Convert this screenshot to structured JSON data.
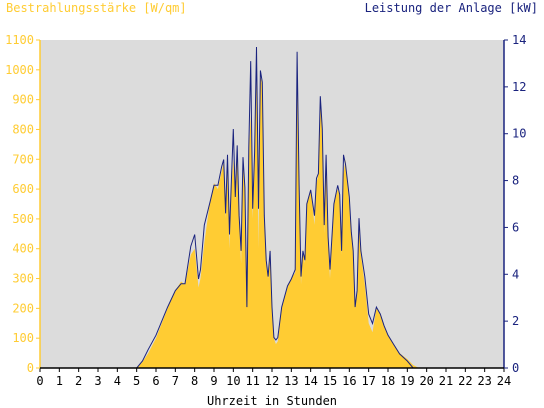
{
  "chart_data": {
    "type": "area",
    "left_axis_title": "Bestrahlungsstärke [W/qm]",
    "right_axis_title": "Leistung der Anlage [kW]",
    "xlabel": "Uhrzeit in Stunden",
    "xlim": [
      0,
      24
    ],
    "ylim_left": [
      0,
      1100
    ],
    "ylim_right": [
      0,
      14
    ],
    "x_ticks": [
      "0",
      "1",
      "2",
      "3",
      "4",
      "5",
      "6",
      "7",
      "8",
      "9",
      "10",
      "11",
      "12",
      "13",
      "14",
      "15",
      "16",
      "17",
      "18",
      "19",
      "20",
      "21",
      "22",
      "23",
      "24"
    ],
    "left_ticks": [
      "0",
      "100",
      "200",
      "300",
      "400",
      "500",
      "600",
      "700",
      "800",
      "900",
      "1000",
      "1100"
    ],
    "right_ticks": [
      "0",
      "2",
      "4",
      "6",
      "8",
      "10",
      "12",
      "14"
    ],
    "grid": false,
    "colors": {
      "plot_bg": "#dcdcdc",
      "irradiance": "#ffcc33",
      "irradiance_axis": "#ffcc33",
      "power": "#1a237e",
      "power_axis": "#1a237e",
      "text": "#000000"
    },
    "series": [
      {
        "axis": "left",
        "style": "area",
        "x": [
          0,
          5,
          5.3,
          5.6,
          6,
          6.3,
          6.6,
          7,
          7.3,
          7.5,
          7.8,
          8,
          8.2,
          8.3,
          8.5,
          8.8,
          9,
          9.2,
          9.4,
          9.5,
          9.6,
          9.7,
          9.8,
          9.9,
          10,
          10.1,
          10.2,
          10.3,
          10.4,
          10.5,
          10.6,
          10.7,
          10.8,
          10.9,
          11,
          11.1,
          11.2,
          11.3,
          11.4,
          11.5,
          11.6,
          11.7,
          11.8,
          11.9,
          12,
          12.1,
          12.2,
          12.3,
          12.5,
          12.8,
          13,
          13.2,
          13.3,
          13.4,
          13.5,
          13.6,
          13.7,
          13.8,
          14,
          14.2,
          14.3,
          14.4,
          14.5,
          14.6,
          14.7,
          14.8,
          14.9,
          15,
          15.2,
          15.4,
          15.5,
          15.6,
          15.7,
          15.8,
          16,
          16.1,
          16.2,
          16.3,
          16.4,
          16.5,
          16.6,
          16.8,
          17,
          17.2,
          17.4,
          17.6,
          17.8,
          18,
          18.3,
          18.6,
          19,
          19.3,
          19.6,
          19.8,
          20,
          24
        ],
        "values": [
          0,
          0,
          20,
          50,
          100,
          150,
          200,
          260,
          290,
          280,
          380,
          400,
          270,
          300,
          420,
          560,
          620,
          600,
          660,
          690,
          500,
          700,
          400,
          600,
          700,
          560,
          750,
          500,
          350,
          690,
          600,
          200,
          700,
          850,
          500,
          700,
          1000,
          400,
          980,
          950,
          500,
          350,
          300,
          400,
          200,
          100,
          80,
          90,
          200,
          270,
          300,
          320,
          1000,
          600,
          280,
          400,
          350,
          550,
          600,
          480,
          620,
          650,
          900,
          800,
          450,
          700,
          420,
          300,
          550,
          600,
          580,
          380,
          650,
          700,
          550,
          450,
          380,
          200,
          250,
          500,
          380,
          280,
          150,
          120,
          200,
          180,
          140,
          110,
          80,
          50,
          30,
          10,
          0,
          0,
          0,
          0
        ]
      },
      {
        "axis": "right",
        "style": "line",
        "x": [
          0,
          5,
          5.3,
          5.6,
          6,
          6.3,
          6.6,
          7,
          7.3,
          7.5,
          7.8,
          8,
          8.2,
          8.3,
          8.5,
          8.8,
          9,
          9.2,
          9.4,
          9.5,
          9.6,
          9.7,
          9.8,
          9.9,
          10,
          10.1,
          10.2,
          10.3,
          10.4,
          10.5,
          10.6,
          10.7,
          10.8,
          10.9,
          11,
          11.1,
          11.2,
          11.3,
          11.4,
          11.5,
          11.6,
          11.7,
          11.8,
          11.9,
          12,
          12.1,
          12.2,
          12.3,
          12.5,
          12.8,
          13,
          13.2,
          13.3,
          13.4,
          13.5,
          13.6,
          13.7,
          13.8,
          14,
          14.2,
          14.3,
          14.4,
          14.5,
          14.6,
          14.7,
          14.8,
          14.9,
          15,
          15.2,
          15.4,
          15.5,
          15.6,
          15.7,
          15.8,
          16,
          16.1,
          16.2,
          16.3,
          16.4,
          16.5,
          16.6,
          16.8,
          17,
          17.2,
          17.4,
          17.6,
          17.8,
          18,
          18.3,
          18.6,
          19,
          19.3,
          19.6,
          19.8,
          20,
          24
        ],
        "values": [
          0,
          0,
          0.3,
          0.8,
          1.4,
          2,
          2.6,
          3.3,
          3.6,
          3.6,
          5.2,
          5.7,
          3.8,
          4.2,
          6.1,
          7.1,
          7.8,
          7.8,
          8.6,
          8.9,
          6.6,
          9.1,
          5.7,
          8.0,
          10.2,
          7.3,
          9.5,
          6.5,
          5.0,
          9.0,
          7.7,
          2.6,
          9.4,
          13.1,
          6.8,
          9.2,
          13.7,
          6.8,
          12.7,
          12.2,
          6.5,
          4.6,
          3.9,
          5.0,
          2.6,
          1.3,
          1.2,
          1.3,
          2.6,
          3.5,
          3.8,
          4.2,
          13.5,
          7.8,
          3.9,
          5.0,
          4.6,
          7.0,
          7.6,
          6.5,
          8.1,
          8.3,
          11.6,
          10.2,
          6.1,
          9.1,
          5.6,
          4.2,
          7.0,
          7.8,
          7.4,
          5.0,
          9.1,
          8.7,
          7.3,
          5.8,
          5.0,
          2.6,
          3.3,
          6.4,
          5.0,
          3.9,
          2.3,
          1.9,
          2.6,
          2.3,
          1.8,
          1.4,
          1.0,
          0.6,
          0.3,
          0,
          0,
          0,
          0,
          0
        ]
      }
    ]
  }
}
